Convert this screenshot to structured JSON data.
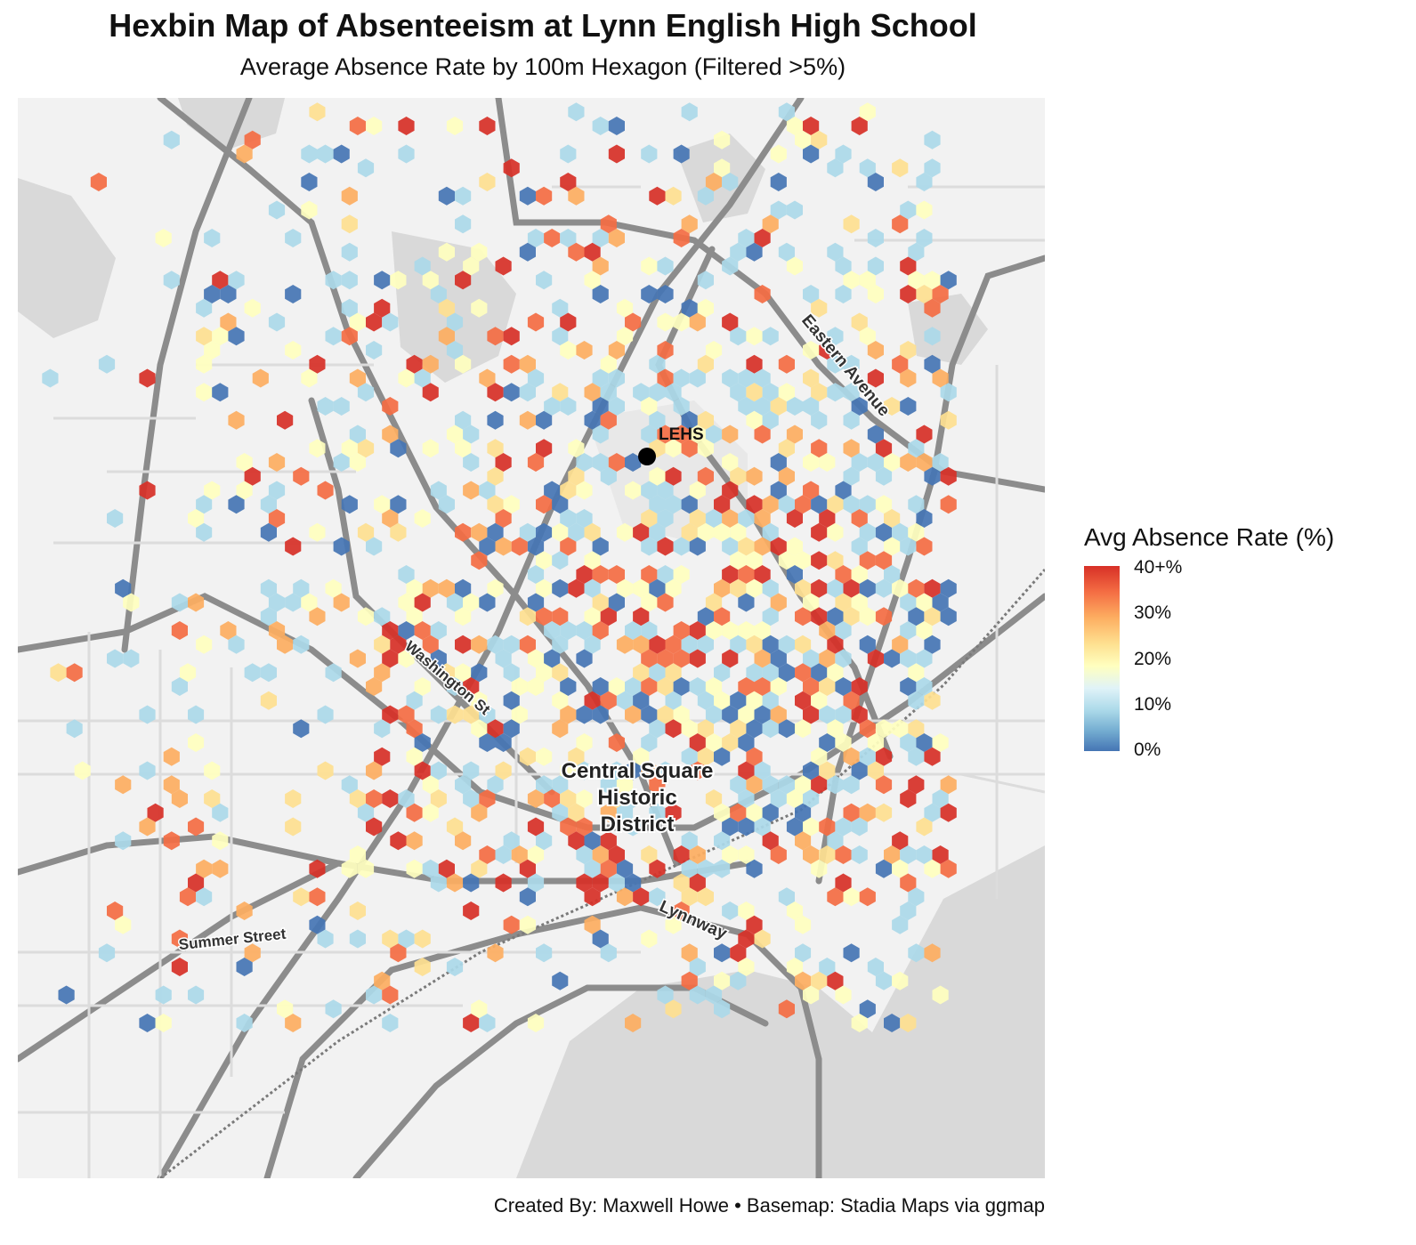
{
  "title": "Hexbin Map of Absenteeism at Lynn English High School",
  "subtitle": "Average Absence Rate by 100m Hexagon (Filtered >5%)",
  "caption": "Created By: Maxwell Howe • Basemap: Stadia Maps via ggmap",
  "legend": {
    "title": "Avg Absence Rate (%)",
    "labels": [
      "40+%",
      "30%",
      "20%",
      "10%",
      "0%"
    ]
  },
  "map_labels": {
    "school": "LEHS",
    "district_line1": "Central Square",
    "district_line2": "Historic",
    "district_line3": "District",
    "summer_street": "Summer Street",
    "lynnway": "Lynnway",
    "eastern_avenue": "Eastern Avenue",
    "washington_street": "Washington St"
  },
  "colors": {
    "high": "#d73027",
    "mid_high": "#f46d43",
    "mid": "#fdae61",
    "low_mid": "#fee090",
    "neutral": "#ffffbf",
    "low": "#abd9e9",
    "lowest": "#4575b4"
  },
  "chart_data": {
    "type": "heatmap",
    "value_scale": {
      "min": 0,
      "max": 40,
      "unit": "%"
    },
    "legend_position": "right"
  }
}
